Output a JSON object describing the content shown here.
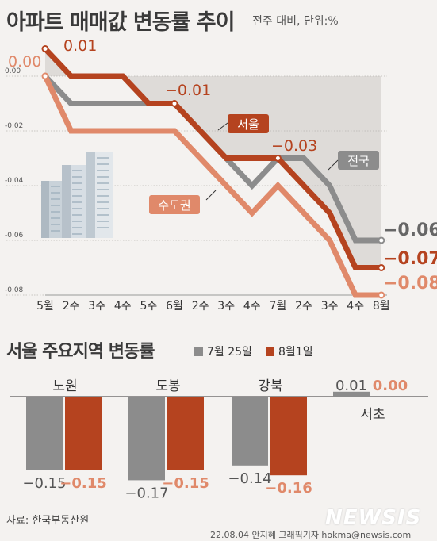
{
  "title": "아파트 매매값 변동률 추이",
  "unit": "전주 대비, 단위:%",
  "colors": {
    "seoul": "#b5431f",
    "national": "#8c8c8c",
    "metro": "#e0896a",
    "shade": "#dedbd8"
  },
  "chart_data": [
    {
      "type": "line",
      "categories": [
        "5월",
        "2주",
        "3주",
        "4주",
        "5주",
        "6월",
        "2주",
        "3주",
        "4주",
        "7월",
        "2주",
        "3주",
        "4주",
        "8월"
      ],
      "ylim": [
        -0.08,
        0.0
      ],
      "yticks": [
        "0.00",
        "-0.02",
        "-0.04",
        "-0.06",
        "-0.08"
      ],
      "series": [
        {
          "name": "서울",
          "key": "seoul",
          "values": [
            0.01,
            0.0,
            0.0,
            0.0,
            -0.01,
            -0.01,
            -0.02,
            -0.03,
            -0.03,
            -0.03,
            -0.04,
            -0.05,
            -0.07,
            -0.07
          ]
        },
        {
          "name": "전국",
          "key": "national",
          "values": [
            0.0,
            -0.01,
            -0.01,
            -0.01,
            -0.01,
            -0.01,
            -0.02,
            -0.03,
            -0.04,
            -0.03,
            -0.03,
            -0.04,
            -0.06,
            -0.06
          ]
        },
        {
          "name": "수도권",
          "key": "metro",
          "values": [
            0.0,
            -0.02,
            -0.02,
            -0.02,
            -0.02,
            -0.02,
            -0.03,
            -0.04,
            -0.05,
            -0.04,
            -0.05,
            -0.06,
            -0.08,
            -0.08
          ]
        }
      ],
      "annotations": [
        "0.01",
        "0.00",
        "−0.01",
        "−0.03",
        "−0.06",
        "−0.07",
        "−0.08"
      ]
    },
    {
      "type": "bar",
      "title": "서울 주요지역 변동률",
      "legend": [
        "7월 25일",
        "8월1일"
      ],
      "categories": [
        "노원",
        "도봉",
        "강북",
        "서초"
      ],
      "series": [
        {
          "name": "7월 25일",
          "values": [
            -0.15,
            -0.17,
            -0.14,
            0.01
          ],
          "labels": [
            "−0.15",
            "−0.17",
            "−0.14",
            "0.01"
          ]
        },
        {
          "name": "8월1일",
          "values": [
            -0.15,
            -0.15,
            -0.16,
            0.0
          ],
          "labels": [
            "−0.15",
            "−0.15",
            "−0.16",
            "0.00"
          ]
        }
      ]
    }
  ],
  "source": "자료: 한국부동산원",
  "credit": "22.08.04 안지혜 그래픽기자 hokma@newsis.com",
  "logo": "NEWSIS"
}
